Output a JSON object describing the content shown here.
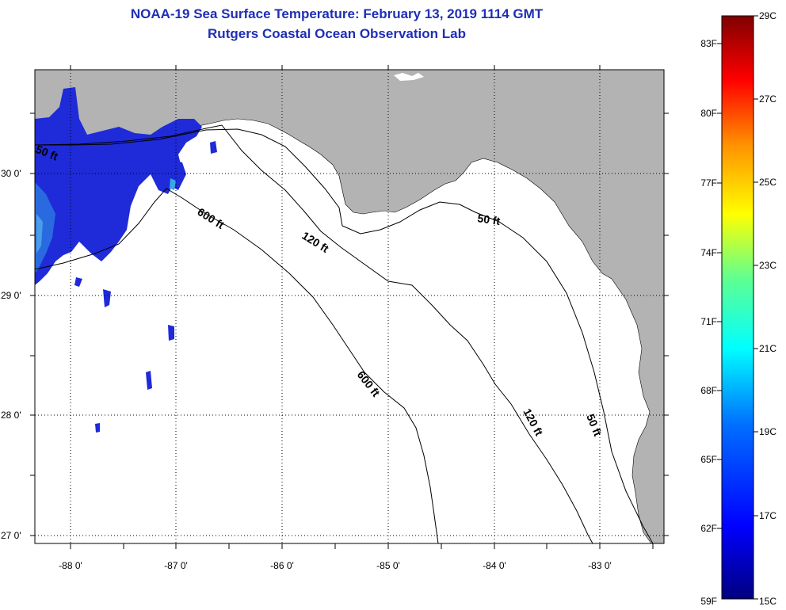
{
  "title": "NOAA-19 Sea Surface Temperature:  February 13, 2019 1114 GMT",
  "subtitle": "Rutgers Coastal Ocean Observation Lab",
  "map": {
    "lat_ticks": [
      {
        "value": 30,
        "label": "30 0'"
      },
      {
        "value": 29,
        "label": "29 0'"
      },
      {
        "value": 28,
        "label": "28 0'"
      },
      {
        "value": 27,
        "label": "27 0'"
      }
    ],
    "lon_ticks": [
      {
        "value": -88,
        "label": "-88 0'"
      },
      {
        "value": -87,
        "label": "-87 0'"
      },
      {
        "value": -86,
        "label": "-86 0'"
      },
      {
        "value": -85,
        "label": "-85 0'"
      },
      {
        "value": -84,
        "label": "-84 0'"
      },
      {
        "value": -83,
        "label": "-83 0'"
      }
    ],
    "contour_labels": [
      {
        "text": "50 ft"
      },
      {
        "text": "600 ft"
      },
      {
        "text": "120 ft"
      },
      {
        "text": "50 ft"
      },
      {
        "text": "600 ft"
      },
      {
        "text": "120 ft"
      },
      {
        "text": "50 ft"
      }
    ],
    "land_color": "#b3b3b3",
    "water_color": "#ffffff",
    "sst_color": "#1f2ad8"
  },
  "colorbar": {
    "f_labels": [
      "83F",
      "80F",
      "77F",
      "74F",
      "71F",
      "68F",
      "65F",
      "62F",
      "59F"
    ],
    "c_labels": [
      "29C",
      "27C",
      "25C",
      "23C",
      "21C",
      "19C",
      "17C",
      "15C"
    ],
    "colors": [
      "#7f0000",
      "#ff0000",
      "#ff8000",
      "#ffff00",
      "#80ff80",
      "#00ffff",
      "#0080ff",
      "#0000ff",
      "#00007f"
    ]
  }
}
